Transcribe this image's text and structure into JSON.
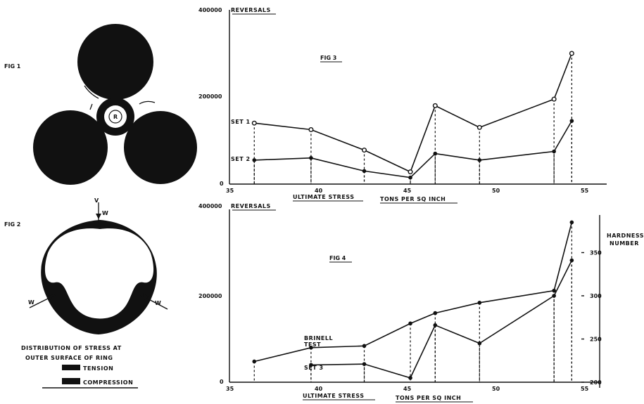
{
  "fig1": {
    "label": "FIG 1",
    "center_label": "R"
  },
  "fig2": {
    "label": "FIG 2",
    "load_labels": [
      "W",
      "W",
      "W"
    ],
    "caption_line1": "DISTRIBUTION OF STRESS AT",
    "caption_line2": "OUTER SURFACE OF RING",
    "legend_tension": "TENSION",
    "legend_compression": "COMPRESSION"
  },
  "chart_data": [
    {
      "type": "line",
      "title": "FIG 3",
      "ylabel": "REVERSALS",
      "yticks": [
        "400000",
        "200000",
        "0"
      ],
      "ylim": [
        0,
        400000
      ],
      "xlim": [
        35,
        55
      ],
      "xticks": [
        "35",
        "40",
        "45",
        "50",
        "55"
      ],
      "xlabel_left": "ULTIMATE STRESS",
      "xlabel_right": "TONS PER SQ INCH",
      "series": [
        {
          "name": "SET 1",
          "x": [
            36.4,
            39.6,
            42.6,
            45.2,
            46.6,
            49.1,
            53.3,
            54.3
          ],
          "y": [
            140000,
            125000,
            78000,
            28000,
            180000,
            130000,
            195000,
            300000
          ]
        },
        {
          "name": "SET 2",
          "x": [
            36.4,
            39.6,
            42.6,
            45.2,
            46.6,
            49.1,
            53.3,
            54.3
          ],
          "y": [
            55000,
            60000,
            30000,
            15000,
            70000,
            55000,
            75000,
            145000
          ]
        }
      ]
    },
    {
      "type": "line",
      "title": "FIG 4",
      "ylabel": "REVERSALS",
      "yticks": [
        "400000",
        "200000",
        "0"
      ],
      "ylim": [
        0,
        400000
      ],
      "y2label": "HARDNESS NUMBER",
      "y2ticks": [
        "350",
        "300",
        "250",
        "200"
      ],
      "y2lim": [
        200,
        400
      ],
      "xlim": [
        35,
        55
      ],
      "xticks": [
        "35",
        "40",
        "45",
        "50",
        "55"
      ],
      "xlabel_left": "ULTIMATE STRESS",
      "xlabel_right": "TONS PER SQ INCH",
      "series": [
        {
          "name": "BRINELL TEST",
          "x": [
            36.4,
            39.6,
            42.6,
            45.2,
            46.6,
            49.1,
            53.3,
            54.3
          ],
          "y": [
            224,
            240,
            242,
            268,
            280,
            292,
            306,
            385
          ]
        },
        {
          "name": "SET 3",
          "x": [
            39.6,
            42.6,
            45.2,
            46.6,
            49.1,
            53.3,
            54.3
          ],
          "y": [
            40000,
            42000,
            10000,
            132000,
            90000,
            200000,
            282000
          ]
        }
      ]
    }
  ]
}
